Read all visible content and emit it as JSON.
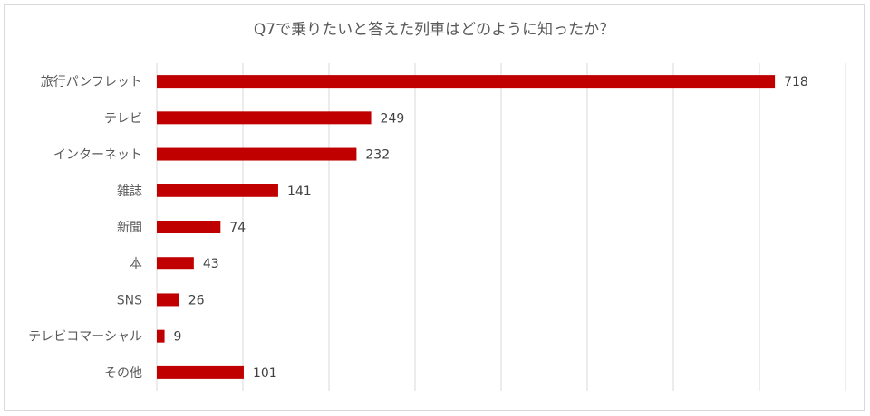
{
  "chart_data": {
    "type": "bar",
    "orientation": "horizontal",
    "title": "Q7で乗りたいと答えた列車はどのように知ったか？",
    "categories": [
      "旅行パンフレット",
      "テレビ",
      "インターネット",
      "雑誌",
      "新聞",
      "本",
      "SNS",
      "テレビコマーシャル",
      "その他"
    ],
    "values": [
      718,
      249,
      232,
      141,
      74,
      43,
      26,
      9,
      101
    ],
    "xlim": [
      0,
      800
    ],
    "grid": true,
    "data_labels": true,
    "bar_color": "#c00000",
    "grid_color": "#d9d9d9"
  }
}
